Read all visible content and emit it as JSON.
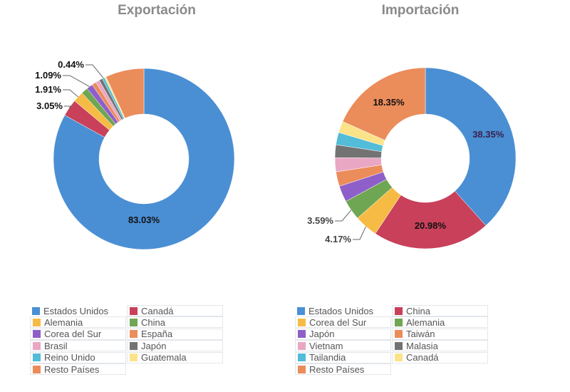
{
  "chart_data": [
    {
      "type": "pie",
      "donut": true,
      "title": "Exportación",
      "slices": [
        {
          "name": "Estados Unidos",
          "value": 83.03,
          "color": "#4a8fd4",
          "label": "83.03%"
        },
        {
          "name": "Canadá",
          "value": 3.05,
          "color": "#c8405a",
          "label": "3.05%"
        },
        {
          "name": "Alemania",
          "value": 1.91,
          "color": "#f6bb45",
          "label": "1.91%"
        },
        {
          "name": "China",
          "value": 1.2,
          "color": "#6fa653"
        },
        {
          "name": "Corea del Sur",
          "value": 1.09,
          "color": "#8e5fc9",
          "label": "1.09%"
        },
        {
          "name": "España",
          "value": 0.8,
          "color": "#eb8c5b"
        },
        {
          "name": "Brasil",
          "value": 0.7,
          "color": "#e9a7c4"
        },
        {
          "name": "Japón",
          "value": 0.6,
          "color": "#737373"
        },
        {
          "name": "Reino Unido",
          "value": 0.44,
          "color": "#52bcd9",
          "label": "0.44%"
        },
        {
          "name": "Guatemala",
          "value": 0.3,
          "color": "#fbe38a"
        },
        {
          "name": "Resto Países",
          "value": 6.88,
          "color": "#eb8c5b"
        }
      ],
      "legend": [
        "Estados Unidos",
        "Canadá",
        "Alemania",
        "China",
        "Corea del Sur",
        "España",
        "Brasil",
        "Japón",
        "Reino Unido",
        "Guatemala",
        "Resto Países"
      ],
      "legend_placement": "bottom"
    },
    {
      "type": "pie",
      "donut": true,
      "title": "Importación",
      "slices": [
        {
          "name": "Estados Unidos",
          "value": 38.35,
          "color": "#4a8fd4",
          "label": "38.35%"
        },
        {
          "name": "China",
          "value": 20.98,
          "color": "#c8405a",
          "label": "20.98%"
        },
        {
          "name": "Corea del Sur",
          "value": 4.17,
          "color": "#f6bb45",
          "label": "4.17%"
        },
        {
          "name": "Alemania",
          "value": 3.59,
          "color": "#6fa653",
          "label": "3.59%"
        },
        {
          "name": "Japón",
          "value": 2.9,
          "color": "#8e5fc9"
        },
        {
          "name": "Taiwán",
          "value": 2.6,
          "color": "#eb8c5b"
        },
        {
          "name": "Vietnam",
          "value": 2.5,
          "color": "#e9a7c4"
        },
        {
          "name": "Malasia",
          "value": 2.3,
          "color": "#737373"
        },
        {
          "name": "Tailandia",
          "value": 2.2,
          "color": "#52bcd9"
        },
        {
          "name": "Canadá",
          "value": 2.06,
          "color": "#fbe38a"
        },
        {
          "name": "Resto Países",
          "value": 18.35,
          "color": "#eb8c5b",
          "label": "18.35%"
        }
      ],
      "legend": [
        "Estados Unidos",
        "China",
        "Corea del Sur",
        "Alemania",
        "Japón",
        "Taiwán",
        "Vietnam",
        "Malasia",
        "Tailandia",
        "Canadá",
        "Resto Países"
      ],
      "legend_placement": "bottom"
    }
  ]
}
